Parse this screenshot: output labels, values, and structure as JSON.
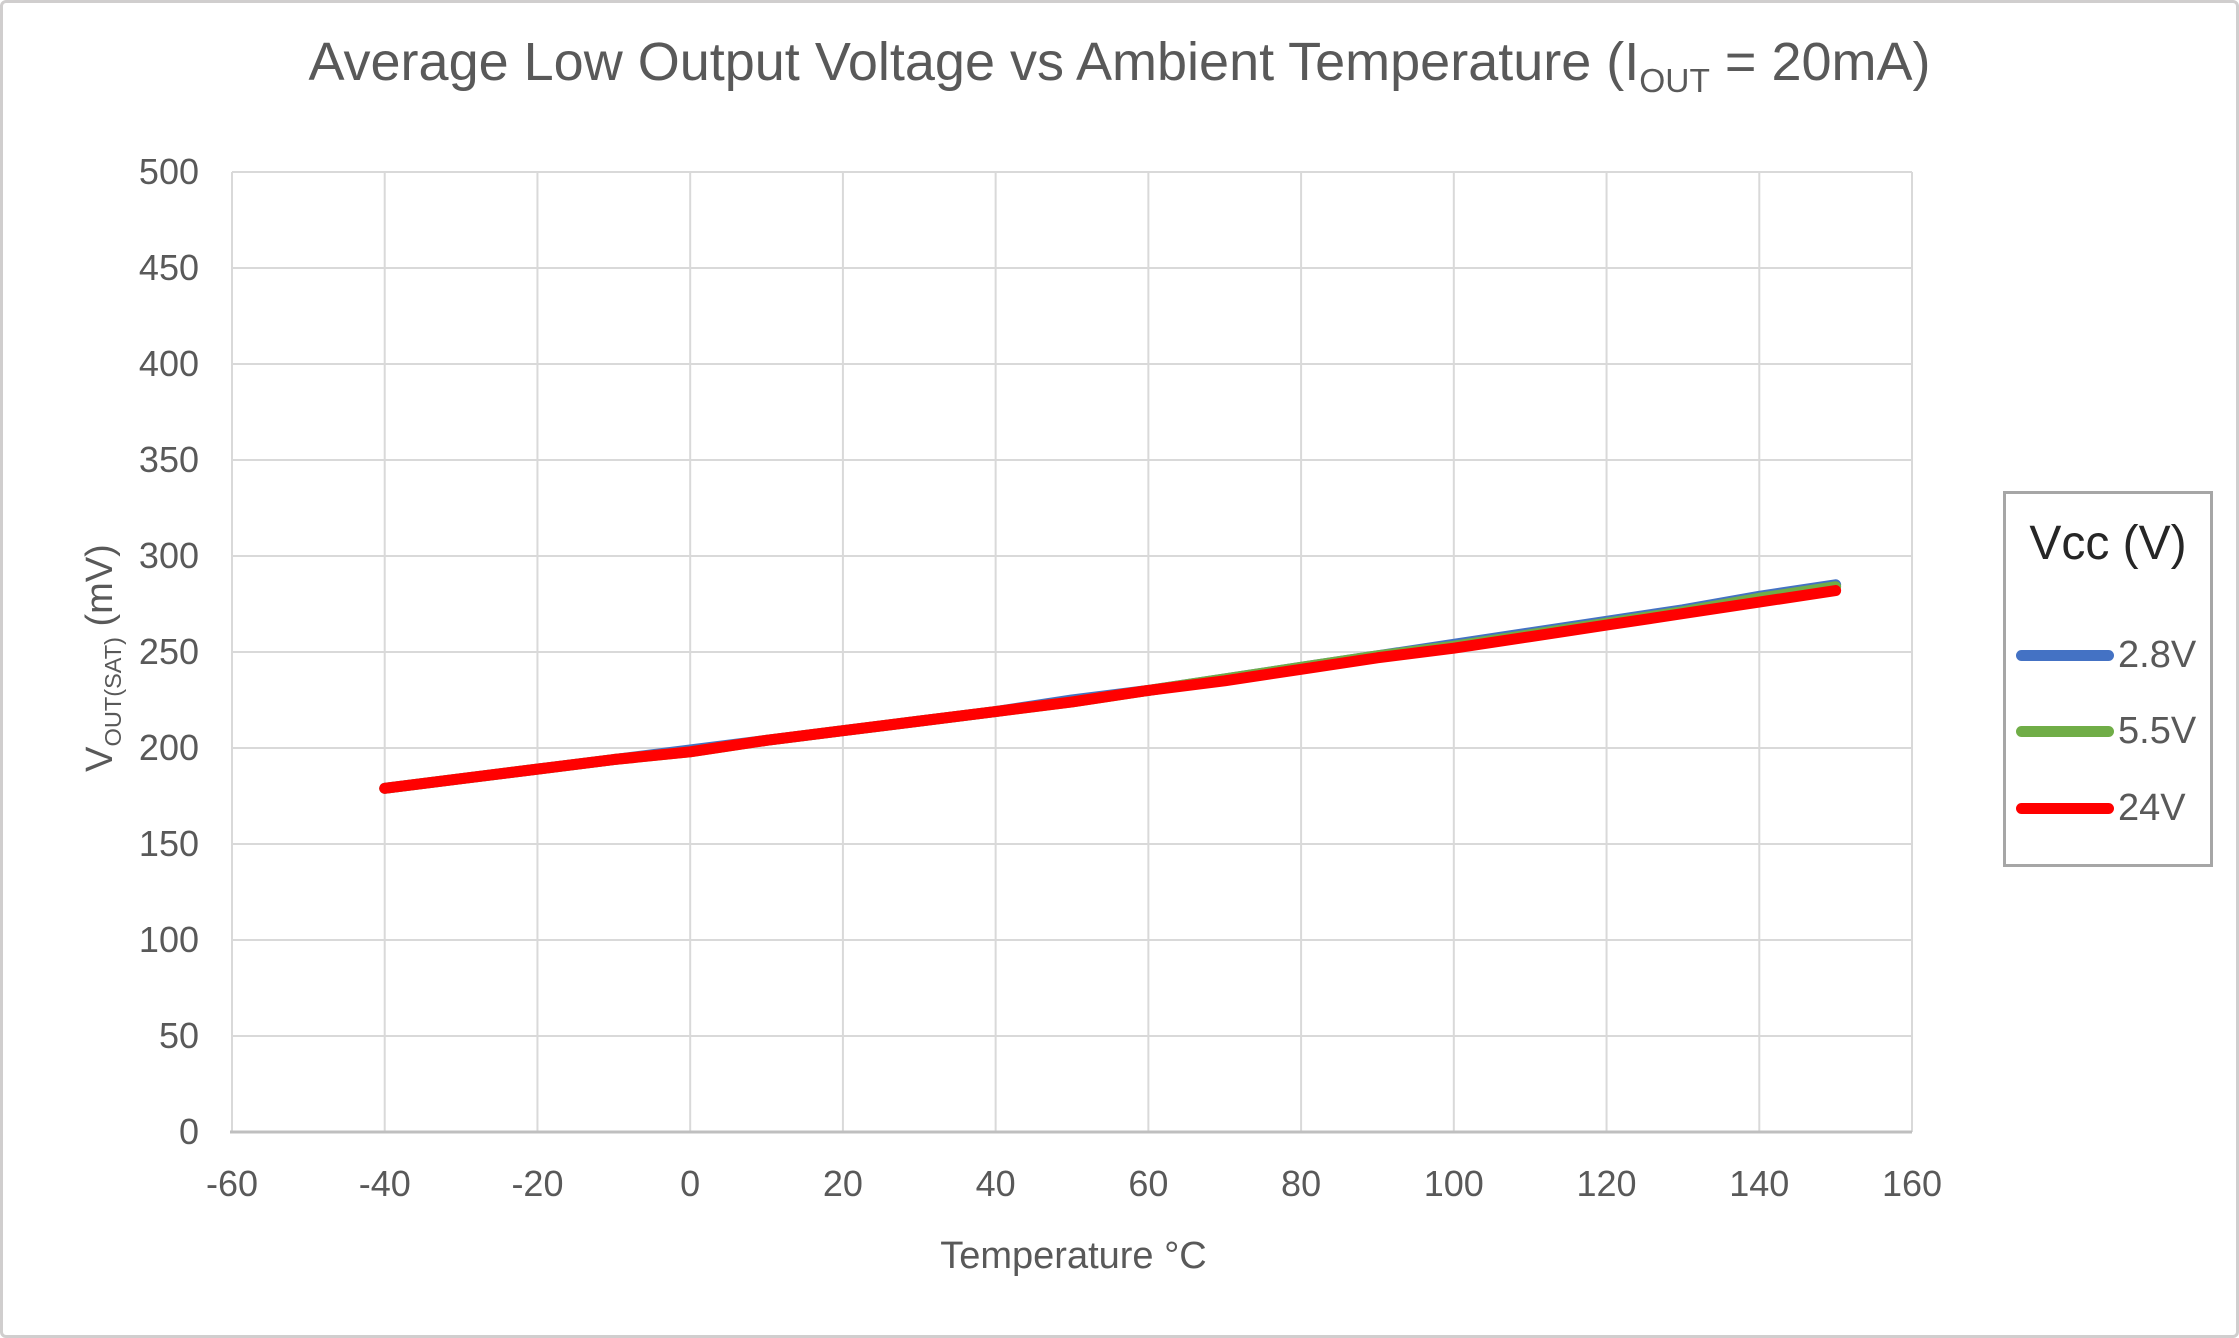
{
  "header": {
    "title_full": "Average Low Output Voltage vs Ambient Temperature (IOUT = 20mA)"
  },
  "colors": {
    "text_gray": "#595959",
    "gridline": "#d9d9d9",
    "axis_line": "#bfbfbf",
    "frame_border": "#d0cece",
    "legend_border": "#a6a6a6",
    "legend_title_text": "#262626",
    "series_blue": "#4472C4",
    "series_green": "#70AD47",
    "series_red": "#FF0000"
  },
  "chart_data": {
    "type": "line",
    "title": "Average Low Output Voltage vs Ambient Temperature (IOUT = 20mA)",
    "title_parts": {
      "prefix": "Average Low Output Voltage vs Ambient Temperature (I",
      "sub": "OUT",
      "suffix": " = 20mA)"
    },
    "xlabel": "Temperature °C",
    "ylabel": "VOUT(SAT) (mV)",
    "ylabel_parts": {
      "prefix": "V",
      "sub": "OUT(SAT)",
      "suffix": " (mV)"
    },
    "xlim": [
      -60,
      160
    ],
    "ylim": [
      0,
      500
    ],
    "x_ticks": [
      -60,
      -40,
      -20,
      0,
      20,
      40,
      60,
      80,
      100,
      120,
      140,
      160
    ],
    "y_ticks": [
      0,
      50,
      100,
      150,
      200,
      250,
      300,
      350,
      400,
      450,
      500
    ],
    "grid": true,
    "legend": {
      "title": "Vcc (V)",
      "position": "right"
    },
    "x": [
      -40,
      -30,
      -20,
      -10,
      0,
      10,
      20,
      30,
      40,
      50,
      60,
      70,
      80,
      90,
      100,
      110,
      120,
      130,
      140,
      150
    ],
    "series": [
      {
        "name": "2.8V",
        "color": "#4472C4",
        "values": [
          179,
          184,
          189,
          194,
          199,
          204,
          209,
          214,
          219,
          225,
          230,
          236,
          242,
          248,
          254,
          260,
          266,
          272,
          279,
          285
        ]
      },
      {
        "name": "5.5V",
        "color": "#70AD47",
        "values": [
          179,
          184,
          189,
          194,
          198,
          204,
          209,
          214,
          219,
          224,
          230,
          236,
          242,
          248,
          253,
          259,
          265,
          271,
          278,
          284
        ]
      },
      {
        "name": "24V",
        "color": "#FF0000",
        "values": [
          179,
          184,
          189,
          194,
          198,
          204,
          209,
          214,
          219,
          224,
          230,
          235,
          241,
          247,
          252,
          258,
          264,
          270,
          276,
          282
        ]
      }
    ]
  }
}
